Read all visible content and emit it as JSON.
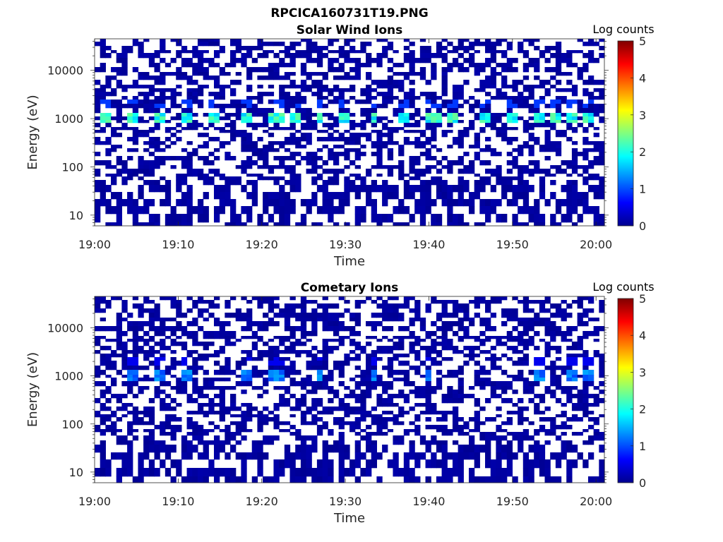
{
  "figure": {
    "title": "RPCICA160731T19.PNG"
  },
  "chart_data": [
    {
      "type": "heatmap",
      "title": "Solar Wind Ions",
      "xlabel": "Time",
      "ylabel": "Energy (eV)",
      "x_ticks": [
        "19:00",
        "19:10",
        "19:20",
        "19:30",
        "19:40",
        "19:50",
        "20:00"
      ],
      "xlim": [
        "19:00",
        "20:01"
      ],
      "y_scale": "log",
      "y_ticks": [
        "10",
        "100",
        "1000",
        "10000"
      ],
      "ylim": [
        6,
        45000
      ],
      "colorbar": {
        "label": "Log counts",
        "ticks": [
          "0",
          "1",
          "2",
          "3",
          "4",
          "5"
        ],
        "range": [
          0,
          5
        ],
        "colormap": "jet"
      },
      "background": "#ffffff",
      "grid": false,
      "features": {
        "background_level": 0.15,
        "enhanced_band_eV": 1000,
        "enhanced_level": 2.0,
        "enhanced_time_min": [
          1.5,
          4.5,
          8,
          11,
          14.5,
          18,
          21,
          22,
          24,
          27,
          30,
          33.5,
          37,
          40,
          41,
          43,
          46.5,
          50,
          53,
          55,
          57,
          59
        ]
      }
    },
    {
      "type": "heatmap",
      "title": "Cometary Ions",
      "xlabel": "Time",
      "ylabel": "Energy (eV)",
      "x_ticks": [
        "19:00",
        "19:10",
        "19:20",
        "19:30",
        "19:40",
        "19:50",
        "20:00"
      ],
      "xlim": [
        "19:00",
        "20:01"
      ],
      "y_scale": "log",
      "y_ticks": [
        "10",
        "100",
        "1000",
        "10000"
      ],
      "ylim": [
        6,
        45000
      ],
      "colorbar": {
        "label": "Log counts",
        "ticks": [
          "0",
          "1",
          "2",
          "3",
          "4",
          "5"
        ],
        "range": [
          0,
          5
        ],
        "colormap": "jet"
      },
      "background": "#ffffff",
      "grid": false,
      "features": {
        "background_level": 0.15,
        "enhanced_band_eV": 1000,
        "enhanced_level": 1.2,
        "enhanced_time_min": [
          4.5,
          8,
          11,
          18,
          21,
          22,
          27,
          33.5,
          40,
          53,
          57,
          59
        ]
      }
    }
  ]
}
